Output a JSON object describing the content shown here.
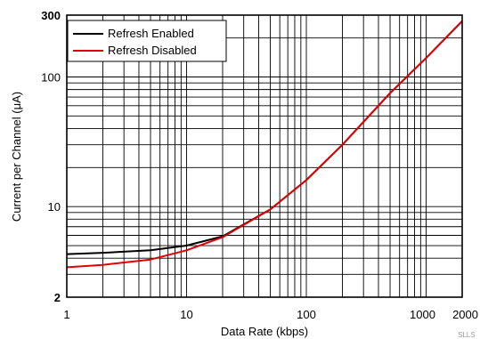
{
  "chart_data": {
    "type": "line",
    "xlabel": "Data Rate (kbps)",
    "ylabel": "Current per Channel (μA)",
    "x_scale": "log",
    "y_scale": "log",
    "xlim": [
      1,
      2000
    ],
    "ylim": [
      2,
      300
    ],
    "grid": true,
    "legend_position": "top-left",
    "x_ticks": [
      {
        "value": 1,
        "label": "1"
      },
      {
        "value": 10,
        "label": "10"
      },
      {
        "value": 100,
        "label": "100"
      },
      {
        "value": 1000,
        "label": "1000"
      },
      {
        "value": 2000,
        "label": "2000"
      }
    ],
    "y_ticks": [
      {
        "value": 2,
        "label": "2",
        "bold": true
      },
      {
        "value": 10,
        "label": "10",
        "bold": false
      },
      {
        "value": 100,
        "label": "100",
        "bold": false
      },
      {
        "value": 300,
        "label": "300",
        "bold": true
      }
    ],
    "series": [
      {
        "name": "Refresh Enabled",
        "color": "#000000",
        "x": [
          1,
          2,
          5,
          10,
          20,
          50,
          100,
          200,
          500,
          1000,
          2000
        ],
        "y": [
          4.3,
          4.4,
          4.6,
          5.0,
          5.9,
          9.5,
          16,
          30,
          75,
          140,
          270
        ]
      },
      {
        "name": "Refresh Disabled",
        "color": "#e00000",
        "x": [
          1,
          2,
          5,
          10,
          20,
          50,
          100,
          200,
          500,
          1000,
          2000
        ],
        "y": [
          3.4,
          3.55,
          3.9,
          4.6,
          5.8,
          9.5,
          16,
          30,
          75,
          140,
          270
        ]
      }
    ]
  },
  "corner_note": "SLLS"
}
